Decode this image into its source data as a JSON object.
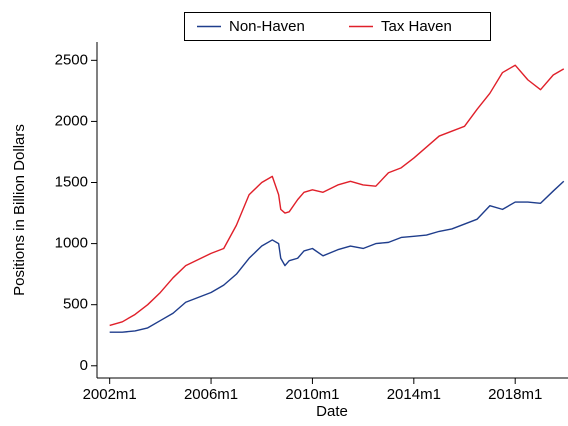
{
  "chart_data": {
    "type": "line",
    "x_label": "Date",
    "y_label": "Positions in Billion Dollars",
    "x": [
      "2002m1",
      "2002m7",
      "2003m1",
      "2003m7",
      "2004m1",
      "2004m7",
      "2005m1",
      "2005m7",
      "2006m1",
      "2006m7",
      "2007m1",
      "2007m7",
      "2008m1",
      "2008m6",
      "2008m9",
      "2008m10",
      "2008m12",
      "2009m2",
      "2009m6",
      "2009m9",
      "2010m1",
      "2010m6",
      "2011m1",
      "2011m7",
      "2012m1",
      "2012m7",
      "2013m1",
      "2013m7",
      "2014m1",
      "2014m7",
      "2015m1",
      "2015m7",
      "2016m1",
      "2016m7",
      "2017m1",
      "2017m7",
      "2018m1",
      "2018m7",
      "2019m1",
      "2019m7",
      "2019m12"
    ],
    "series": [
      {
        "name": "Non-Haven",
        "color": "#1f3d8c",
        "values": [
          275,
          275,
          285,
          310,
          370,
          430,
          520,
          560,
          600,
          660,
          750,
          880,
          980,
          1030,
          1000,
          880,
          820,
          860,
          880,
          940,
          960,
          900,
          950,
          980,
          960,
          1000,
          1010,
          1050,
          1060,
          1070,
          1100,
          1120,
          1160,
          1200,
          1310,
          1280,
          1340,
          1340,
          1330,
          1430,
          1510
        ]
      },
      {
        "name": "Tax Haven",
        "color": "#e0202a",
        "values": [
          330,
          360,
          420,
          500,
          600,
          720,
          820,
          870,
          920,
          960,
          1150,
          1400,
          1500,
          1550,
          1400,
          1280,
          1250,
          1260,
          1360,
          1420,
          1440,
          1420,
          1480,
          1510,
          1480,
          1470,
          1580,
          1620,
          1700,
          1790,
          1880,
          1920,
          1960,
          2100,
          2230,
          2400,
          2460,
          2340,
          2260,
          2380,
          2430
        ]
      }
    ],
    "xlim": [
      "2001m7",
      "2020m2"
    ],
    "xticks": [
      "2002m1",
      "2006m1",
      "2010m1",
      "2014m1",
      "2018m1"
    ],
    "ylim": [
      -100,
      2650
    ],
    "yticks": [
      0,
      500,
      1000,
      1500,
      2000,
      2500
    ],
    "grid": false,
    "legend": "top"
  }
}
